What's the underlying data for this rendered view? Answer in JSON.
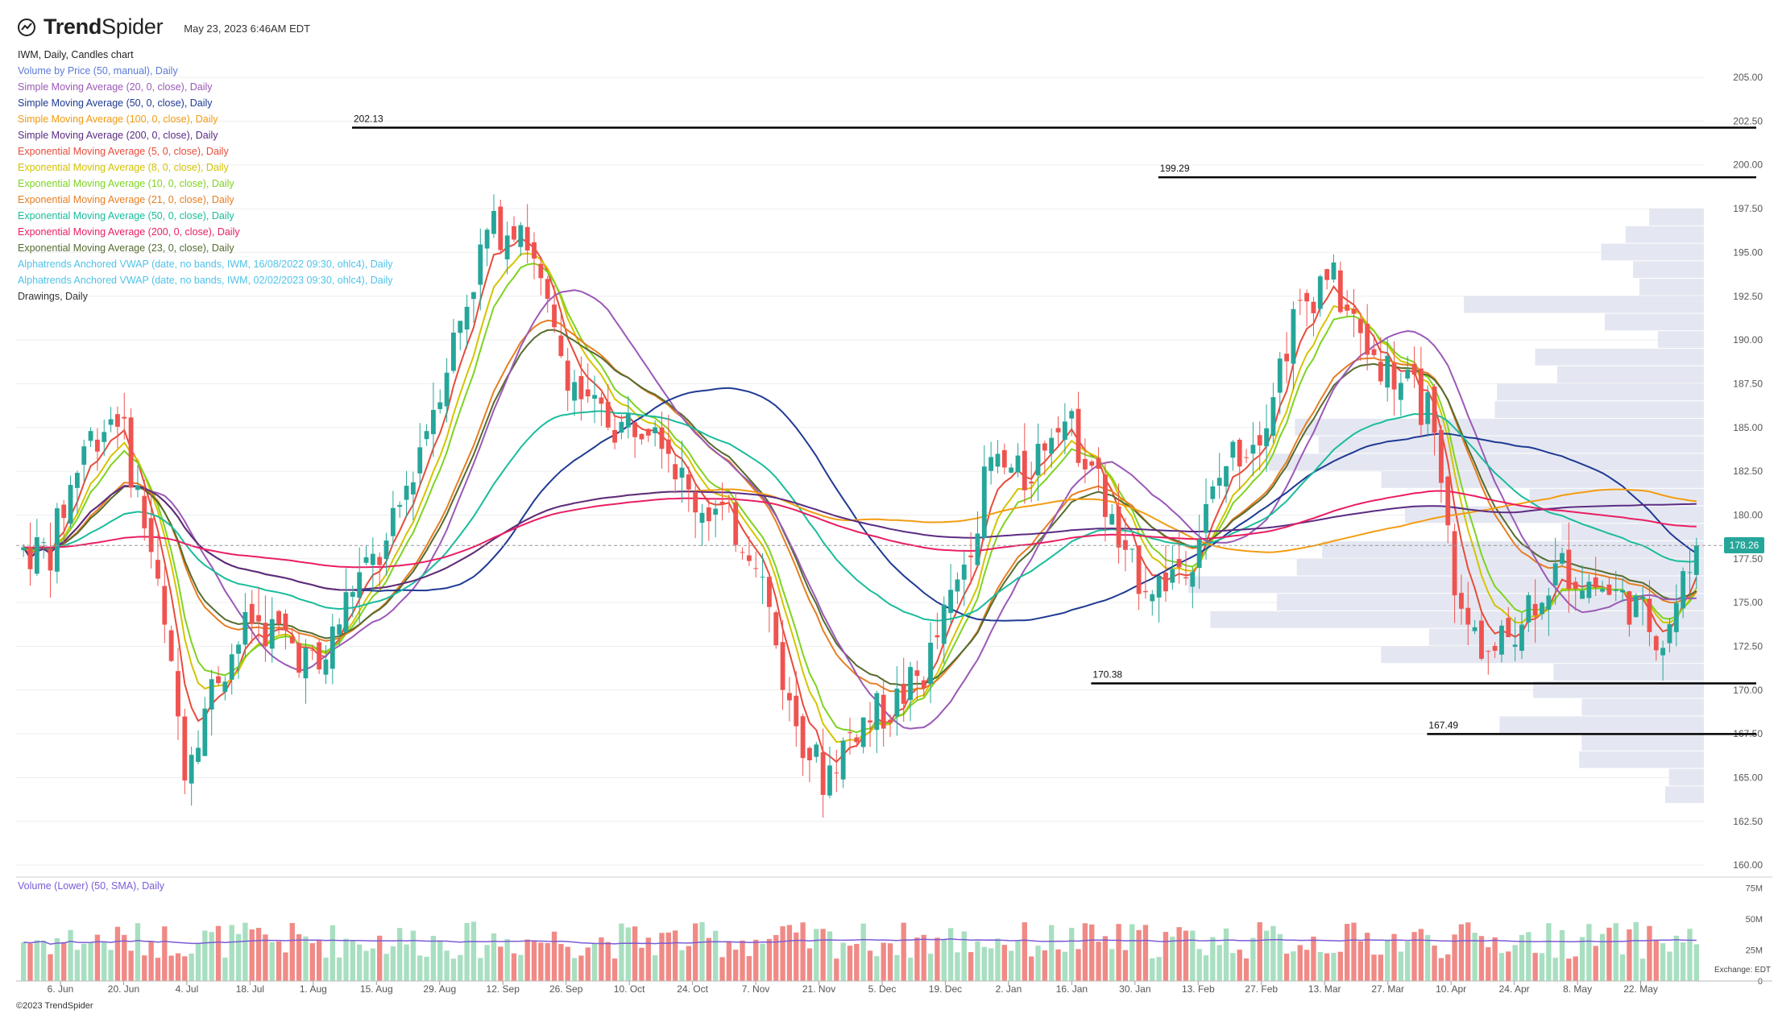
{
  "header": {
    "brand": "TrendSpider",
    "brand_bold": "Trend",
    "brand_light": "Spider",
    "timestamp": "May 23, 2023 6:46AM EDT",
    "logo_icon": "trendspider-logo-icon"
  },
  "legend": [
    {
      "text": "IWM, Daily, Candles chart",
      "color": "#222222"
    },
    {
      "text": "Volume by Price (50, manual), Daily",
      "color": "#5b7bd6"
    },
    {
      "text": "Simple Moving Average (20, 0, close), Daily",
      "color": "#9b59b6"
    },
    {
      "text": "Simple Moving Average (50, 0, close), Daily",
      "color": "#1f3a93"
    },
    {
      "text": "Simple Moving Average (100, 0, close), Daily",
      "color": "#f39c12"
    },
    {
      "text": "Simple Moving Average (200, 0, close), Daily",
      "color": "#5b2c83"
    },
    {
      "text": "Exponential Moving Average (5, 0, close), Daily",
      "color": "#e74c3c"
    },
    {
      "text": "Exponential Moving Average (8, 0, close), Daily",
      "color": "#d4c400"
    },
    {
      "text": "Exponential Moving Average (10, 0, close), Daily",
      "color": "#7ed321"
    },
    {
      "text": "Exponential Moving Average (21, 0, close), Daily",
      "color": "#e67e22"
    },
    {
      "text": "Exponential Moving Average (50, 0, close), Daily",
      "color": "#1abc9c"
    },
    {
      "text": "Exponential Moving Average (200, 0, close), Daily",
      "color": "#e91e63"
    },
    {
      "text": "Exponential Moving Average (23, 0, close), Daily",
      "color": "#556b2f"
    },
    {
      "text": "Alphatrends Anchored VWAP (date, no bands, IWM, 16/08/2022 09:30, ohlc4), Daily",
      "color": "#4fc3e8"
    },
    {
      "text": "Alphatrends Anchored VWAP (date, no bands, IWM, 02/02/2023 09:30, ohlc4), Daily",
      "color": "#4fc3e8"
    },
    {
      "text": "Drawings, Daily",
      "color": "#333333"
    }
  ],
  "volume_panel": {
    "title": "Volume (Lower) (50, SMA), Daily",
    "axis_labels": [
      "75M",
      "50M",
      "25M",
      "0"
    ],
    "timezone_label": "Exchange: EDT"
  },
  "copyright": "©2023 TrendSpider",
  "colors": {
    "up": "#26a69a",
    "down": "#ef5350",
    "vol_up": "#a8dfc0",
    "vol_down": "#f08a86",
    "vbp": "#dfe3ee",
    "grid": "#eeeeee"
  },
  "chart_data": {
    "type": "candlestick",
    "title": "IWM, Daily, Candles chart",
    "y_axis_ticks": [
      205.0,
      202.5,
      200.0,
      197.5,
      195.0,
      192.5,
      190.0,
      187.5,
      185.0,
      182.5,
      180.0,
      177.5,
      175.0,
      172.5,
      170.0,
      167.5,
      165.0,
      162.5,
      160.0
    ],
    "ylim": [
      159.5,
      208.5
    ],
    "x_axis_labels": [
      "6. Jun",
      "20. Jun",
      "4. Jul",
      "18. Jul",
      "1. Aug",
      "15. Aug",
      "29. Aug",
      "12. Sep",
      "26. Sep",
      "10. Oct",
      "24. Oct",
      "7. Nov",
      "21. Nov",
      "5. Dec",
      "19. Dec",
      "2. Jan",
      "16. Jan",
      "30. Jan",
      "13. Feb",
      "27. Feb",
      "13. Mar",
      "27. Mar",
      "10. Apr",
      "24. Apr",
      "8. May",
      "22. May"
    ],
    "last_price": "178.26",
    "horizontal_levels": [
      {
        "label": "202.13",
        "value": 202.13,
        "start_week": 10
      },
      {
        "label": "199.29",
        "value": 199.29,
        "start_week": 34
      },
      {
        "label": "170.38",
        "value": 170.38,
        "start_week": 32
      },
      {
        "label": "167.49",
        "value": 167.49,
        "start_week": 42
      }
    ],
    "weekly_closes": [
      178,
      184,
      186,
      178,
      166,
      171,
      174,
      173,
      171,
      176,
      178,
      184,
      190,
      196,
      197,
      190,
      186,
      185,
      186,
      181,
      180,
      178,
      169,
      165,
      168,
      169,
      171,
      176,
      183,
      182,
      186,
      183,
      177,
      176,
      178,
      183,
      185,
      191,
      194,
      190,
      188,
      186,
      174,
      172,
      175,
      177,
      176,
      175,
      173,
      178
    ],
    "volume_panel_label": "Volume (Lower) (50, SMA), Daily"
  }
}
